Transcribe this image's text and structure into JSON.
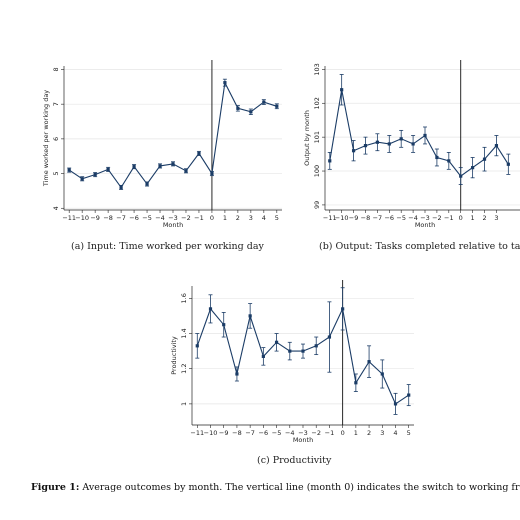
{
  "captions": {
    "a": "(a) Input: Time worked per working day",
    "b": "(b) Output: Tasks completed relative to targe",
    "c": "(c) Productivity"
  },
  "figure_caption": {
    "label": "Figure 1:",
    "text": "Average outcomes by month.  The vertical line (month 0) indicates the switch to working from"
  },
  "colors": {
    "series": "#1b3c66",
    "grid": "#e6e6e6",
    "vline": "#111111"
  },
  "chart_data": [
    {
      "type": "line",
      "xlabel": "Month",
      "ylabel": "Time worked per working day",
      "x": [
        -11,
        -10,
        -9,
        -8,
        -7,
        -6,
        -5,
        -4,
        -3,
        -2,
        -1,
        0,
        1,
        2,
        3,
        4,
        5
      ],
      "xticks": [
        -11,
        -10,
        -9,
        -8,
        -7,
        -6,
        -5,
        -4,
        -3,
        -2,
        -1,
        0,
        1,
        2,
        3,
        4,
        5
      ],
      "yticks": [
        4,
        5,
        6,
        7,
        8
      ],
      "ylim": [
        3.95,
        8.1
      ],
      "values": [
        5.1,
        4.85,
        4.97,
        5.12,
        4.6,
        5.2,
        4.7,
        5.22,
        5.28,
        5.08,
        5.58,
        5.0,
        7.62,
        6.88,
        6.78,
        7.06,
        6.94
      ],
      "err": [
        0.06,
        0.06,
        0.06,
        0.06,
        0.06,
        0.06,
        0.06,
        0.06,
        0.06,
        0.06,
        0.06,
        0.06,
        0.1,
        0.08,
        0.08,
        0.07,
        0.07
      ],
      "vline": 0,
      "grid": true
    },
    {
      "type": "line",
      "xlabel": "Month",
      "ylabel": "Output by month",
      "x": [
        -11,
        -10,
        -9,
        -8,
        -7,
        -6,
        -5,
        -4,
        -3,
        -2,
        -1,
        0,
        1,
        2,
        3,
        4
      ],
      "xticks": [
        -11,
        -10,
        -9,
        -8,
        -7,
        -6,
        -5,
        -4,
        -3,
        -2,
        -1,
        0,
        1,
        2,
        3
      ],
      "yticks": [
        99,
        100,
        101,
        102,
        103
      ],
      "ylim": [
        98.85,
        103.1
      ],
      "values": [
        100.3,
        102.4,
        100.6,
        100.75,
        100.85,
        100.8,
        100.95,
        100.8,
        101.05,
        100.4,
        100.3,
        99.85,
        100.1,
        100.35,
        100.75,
        100.2
      ],
      "err": [
        0.25,
        0.45,
        0.3,
        0.25,
        0.25,
        0.25,
        0.25,
        0.25,
        0.25,
        0.25,
        0.25,
        0.25,
        0.3,
        0.35,
        0.3,
        0.3
      ],
      "vline": 0,
      "grid": true
    },
    {
      "type": "line",
      "xlabel": "Month",
      "ylabel": "Productivity",
      "x": [
        -11,
        -10,
        -9,
        -8,
        -7,
        -6,
        -5,
        -4,
        -3,
        -2,
        -1,
        0,
        1,
        2,
        3,
        4,
        5
      ],
      "xticks": [
        -11,
        -10,
        -9,
        -8,
        -7,
        -6,
        -5,
        -4,
        -3,
        -2,
        -1,
        0,
        1,
        2,
        3,
        4,
        5
      ],
      "yticks": [
        1,
        1.2,
        1.4,
        1.6
      ],
      "ylim": [
        0.88,
        1.67
      ],
      "values": [
        1.33,
        1.54,
        1.45,
        1.17,
        1.5,
        1.27,
        1.35,
        1.3,
        1.3,
        1.33,
        1.38,
        1.54,
        1.12,
        1.24,
        1.17,
        1.0,
        1.05
      ],
      "err": [
        0.07,
        0.08,
        0.07,
        0.04,
        0.07,
        0.05,
        0.05,
        0.05,
        0.04,
        0.05,
        0.2,
        0.12,
        0.05,
        0.09,
        0.08,
        0.06,
        0.06
      ],
      "vline": 0,
      "grid": true
    }
  ]
}
